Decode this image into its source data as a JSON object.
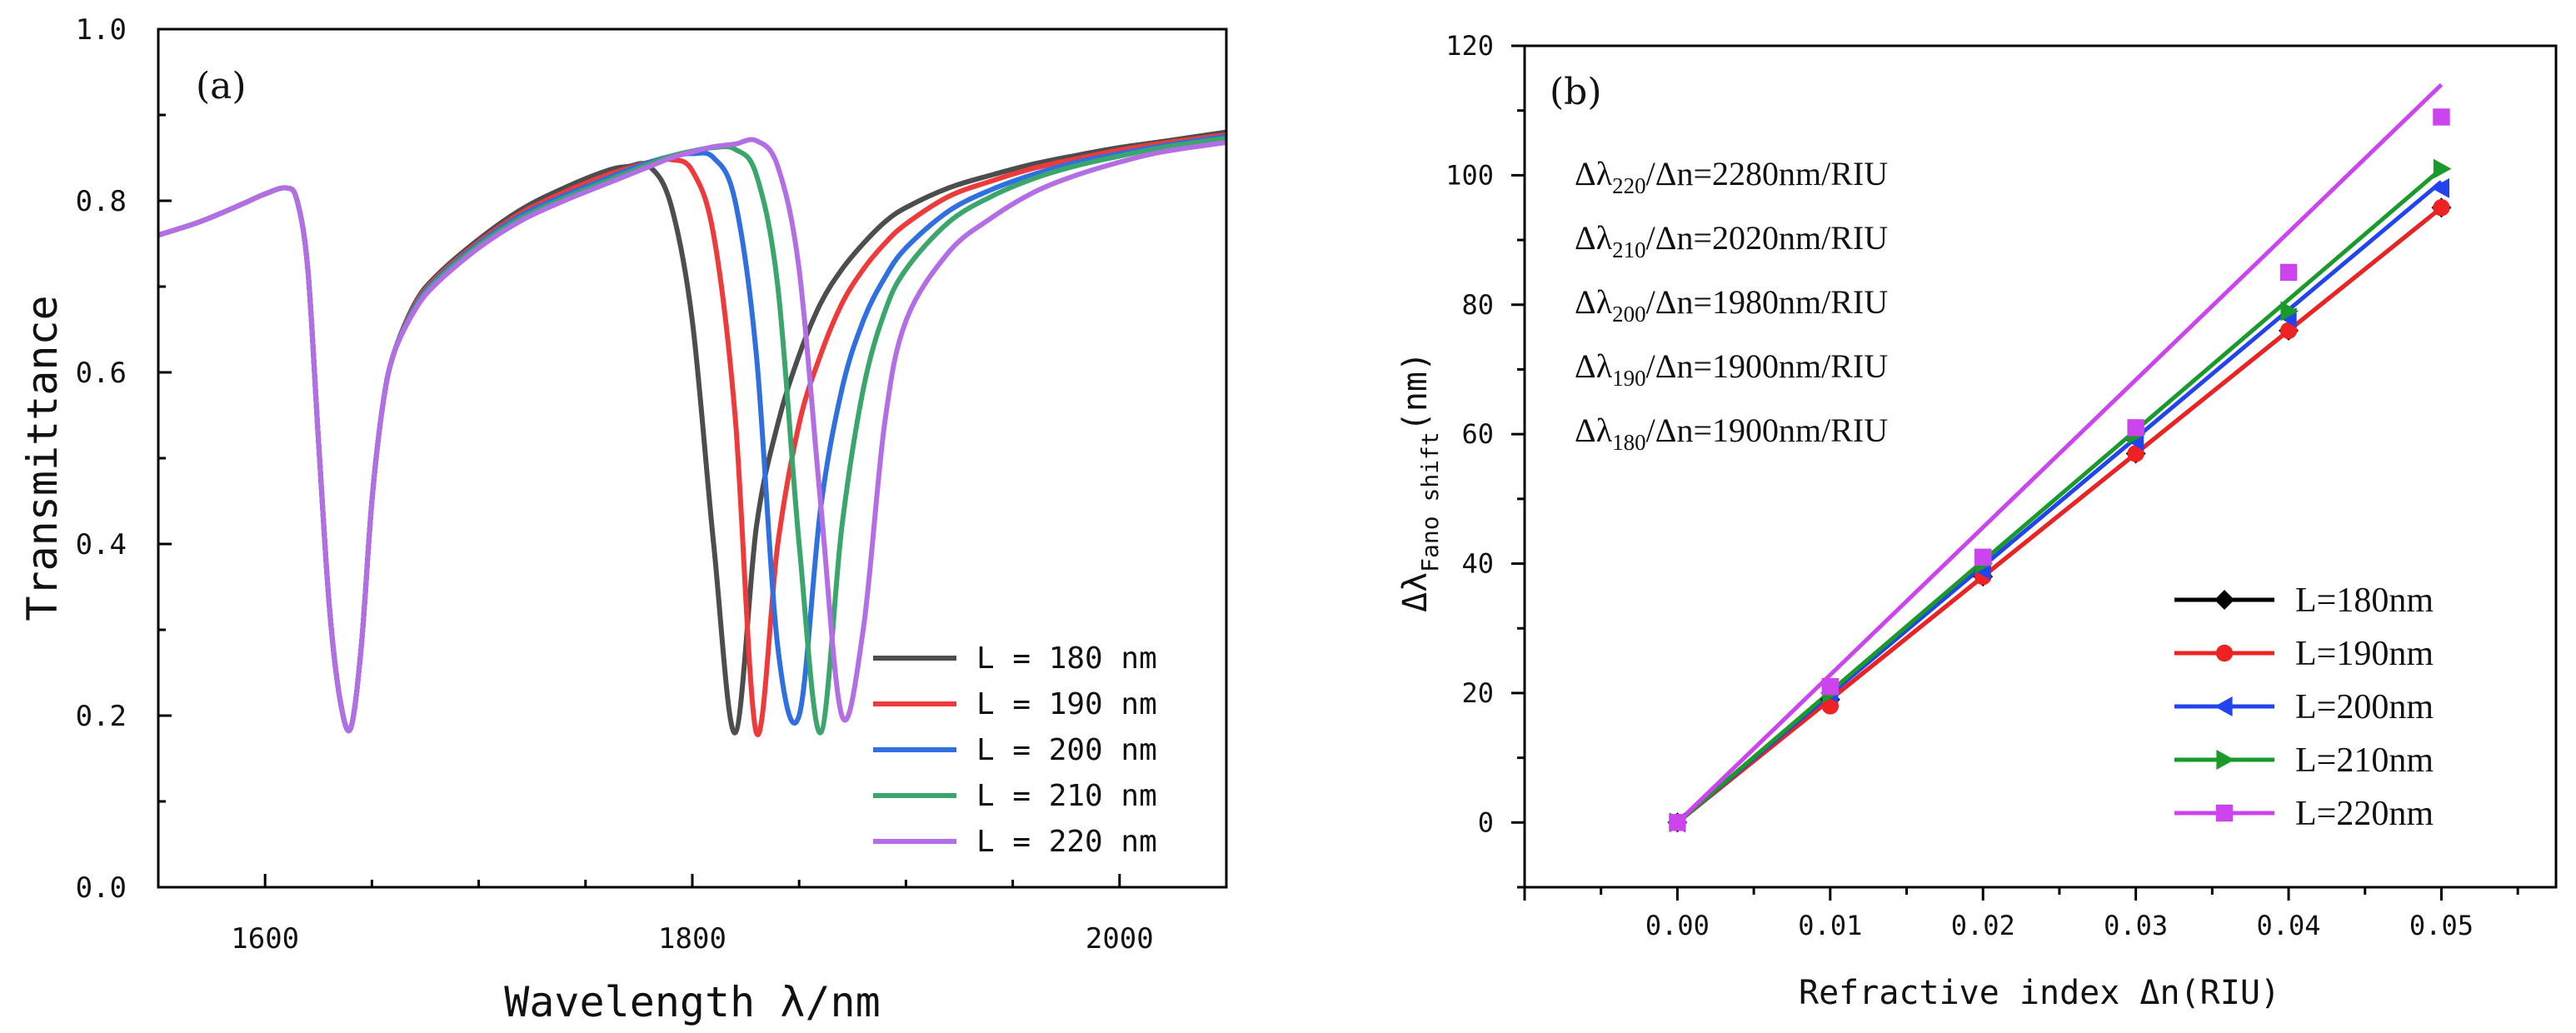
{
  "chart_data": [
    {
      "type": "line",
      "panel_label": "(a)",
      "xlabel": "Wavelength λ/nm",
      "ylabel": "Transmittance",
      "xlim": [
        1550,
        2050
      ],
      "ylim": [
        0.0,
        1.0
      ],
      "xticks": [
        1600,
        1800,
        2000
      ],
      "xtick_labels": [
        "1600",
        "1800",
        "2000"
      ],
      "yticks": [
        0.0,
        0.2,
        0.4,
        0.6,
        0.8,
        1.0
      ],
      "ytick_labels": [
        "0.0",
        "0.2",
        "0.4",
        "0.6",
        "0.8",
        "1.0"
      ],
      "legend_position": "bottom-right",
      "x": [
        1550,
        1570,
        1590,
        1600,
        1610,
        1615,
        1620,
        1625,
        1630,
        1635,
        1640,
        1645,
        1650,
        1655,
        1660,
        1670,
        1680,
        1700,
        1720,
        1740,
        1760,
        1770,
        1780,
        1790,
        1800,
        1810,
        1820,
        1830,
        1840,
        1850,
        1860,
        1870,
        1880,
        1890,
        1900,
        1920,
        1940,
        1960,
        1980,
        2000,
        2020,
        2050
      ],
      "series": [
        {
          "name": "L = 180 nm",
          "color": "#4d4d4d",
          "values": [
            0.76,
            0.776,
            0.797,
            0.808,
            0.815,
            0.8,
            0.72,
            0.52,
            0.33,
            0.22,
            0.185,
            0.28,
            0.45,
            0.56,
            0.62,
            0.68,
            0.712,
            0.755,
            0.79,
            0.815,
            0.835,
            0.84,
            0.84,
            0.795,
            0.66,
            0.4,
            0.18,
            0.42,
            0.54,
            0.62,
            0.68,
            0.72,
            0.75,
            0.775,
            0.792,
            0.815,
            0.83,
            0.843,
            0.853,
            0.862,
            0.869,
            0.88
          ]
        },
        {
          "name": "L = 190 nm",
          "color": "#ee3a3a",
          "values": [
            0.76,
            0.776,
            0.797,
            0.808,
            0.815,
            0.8,
            0.72,
            0.52,
            0.33,
            0.22,
            0.185,
            0.28,
            0.45,
            0.56,
            0.62,
            0.678,
            0.71,
            0.752,
            0.786,
            0.81,
            0.83,
            0.838,
            0.845,
            0.848,
            0.835,
            0.76,
            0.55,
            0.18,
            0.4,
            0.54,
            0.62,
            0.68,
            0.72,
            0.75,
            0.773,
            0.805,
            0.823,
            0.838,
            0.849,
            0.859,
            0.867,
            0.877
          ]
        },
        {
          "name": "L = 200 nm",
          "color": "#2f6fe0",
          "values": [
            0.76,
            0.776,
            0.797,
            0.808,
            0.815,
            0.8,
            0.72,
            0.52,
            0.33,
            0.22,
            0.185,
            0.28,
            0.45,
            0.56,
            0.62,
            0.676,
            0.708,
            0.75,
            0.783,
            0.806,
            0.826,
            0.836,
            0.845,
            0.852,
            0.855,
            0.85,
            0.8,
            0.62,
            0.28,
            0.2,
            0.44,
            0.58,
            0.66,
            0.71,
            0.745,
            0.788,
            0.813,
            0.831,
            0.845,
            0.855,
            0.864,
            0.875
          ]
        },
        {
          "name": "L = 210 nm",
          "color": "#3aa66c",
          "values": [
            0.76,
            0.776,
            0.797,
            0.808,
            0.815,
            0.8,
            0.72,
            0.52,
            0.33,
            0.22,
            0.185,
            0.28,
            0.45,
            0.56,
            0.62,
            0.674,
            0.706,
            0.748,
            0.78,
            0.803,
            0.823,
            0.833,
            0.843,
            0.852,
            0.858,
            0.862,
            0.86,
            0.83,
            0.7,
            0.4,
            0.18,
            0.42,
            0.58,
            0.67,
            0.72,
            0.775,
            0.805,
            0.826,
            0.841,
            0.852,
            0.862,
            0.873
          ]
        },
        {
          "name": "L = 220 nm",
          "color": "#b36ee6",
          "values": [
            0.76,
            0.776,
            0.797,
            0.808,
            0.815,
            0.8,
            0.72,
            0.52,
            0.33,
            0.22,
            0.185,
            0.28,
            0.45,
            0.56,
            0.62,
            0.672,
            0.703,
            0.745,
            0.777,
            0.8,
            0.82,
            0.83,
            0.84,
            0.85,
            0.857,
            0.863,
            0.866,
            0.87,
            0.84,
            0.72,
            0.45,
            0.2,
            0.3,
            0.54,
            0.66,
            0.74,
            0.78,
            0.81,
            0.83,
            0.845,
            0.857,
            0.868
          ]
        }
      ]
    },
    {
      "type": "line",
      "panel_label": "(b)",
      "xlabel": "Refractive index Δn(RIU)",
      "ylabel_main": "Δλ",
      "ylabel_sub": "Fano shift",
      "ylabel_unit": "(nm)",
      "xlim": [
        -0.01,
        0.0575
      ],
      "ylim": [
        -10,
        120
      ],
      "xticks": [
        0.0,
        0.01,
        0.02,
        0.03,
        0.04,
        0.05
      ],
      "xtick_labels": [
        "0.00",
        "0.01",
        "0.02",
        "0.03",
        "0.04",
        "0.05"
      ],
      "yticks": [
        0,
        20,
        40,
        60,
        80,
        100,
        120
      ],
      "ytick_labels": [
        "0",
        "20",
        "40",
        "60",
        "80",
        "100",
        "120"
      ],
      "legend_position": "bottom-right",
      "x": [
        0.0,
        0.01,
        0.02,
        0.03,
        0.04,
        0.05
      ],
      "sensitivity_annotations": [
        {
          "prefix": "Δλ",
          "sub": "220",
          "suffix": "/Δn=2280nm/RIU"
        },
        {
          "prefix": "Δλ",
          "sub": "210",
          "suffix": "/Δn=2020nm/RIU"
        },
        {
          "prefix": "Δλ",
          "sub": "200",
          "suffix": "/Δn=1980nm/RIU"
        },
        {
          "prefix": "Δλ",
          "sub": "190",
          "suffix": "/Δn=1900nm/RIU"
        },
        {
          "prefix": "Δλ",
          "sub": "180",
          "suffix": "/Δn=1900nm/RIU"
        }
      ],
      "series": [
        {
          "name": "L=180nm",
          "color": "#000000",
          "marker": "diamond",
          "values": [
            0,
            19,
            38,
            57,
            76,
            95
          ],
          "fit_slope": 1900
        },
        {
          "name": "L=190nm",
          "color": "#ee2222",
          "marker": "circle",
          "values": [
            0,
            18,
            38,
            57,
            76,
            95
          ],
          "fit_slope": 1900
        },
        {
          "name": "L=200nm",
          "color": "#2244ee",
          "marker": "triangle-left",
          "values": [
            0,
            20,
            39,
            59,
            78,
            98
          ],
          "fit_slope": 1980
        },
        {
          "name": "L=210nm",
          "color": "#1a9a2a",
          "marker": "triangle-right",
          "values": [
            0,
            20,
            40,
            60,
            79,
            101
          ],
          "fit_slope": 2020
        },
        {
          "name": "L=220nm",
          "color": "#cc44ee",
          "marker": "square",
          "values": [
            0,
            21,
            41,
            61,
            85,
            109
          ],
          "fit_slope": 2280
        }
      ]
    }
  ]
}
